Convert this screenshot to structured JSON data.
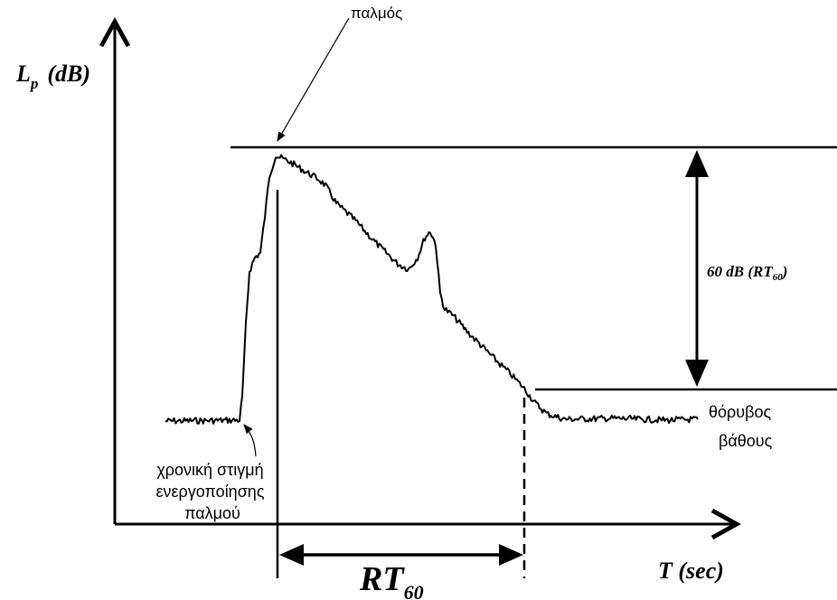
{
  "y_axis": {
    "symbol": "L",
    "subscript": "p",
    "unit": "(dB)"
  },
  "x_axis": {
    "label": "T (sec)"
  },
  "labels": {
    "pulse": "παλμός",
    "range": "60 dB (RT",
    "range_sub": "60",
    "range_close": ")",
    "background_noise": [
      "θόρυβος",
      "βάθους"
    ],
    "activation": [
      "χρονική στιγμή",
      "ενεργοποίησης",
      "παλμού"
    ],
    "reverb_time": "RT",
    "reverb_time_sub": "60"
  }
}
